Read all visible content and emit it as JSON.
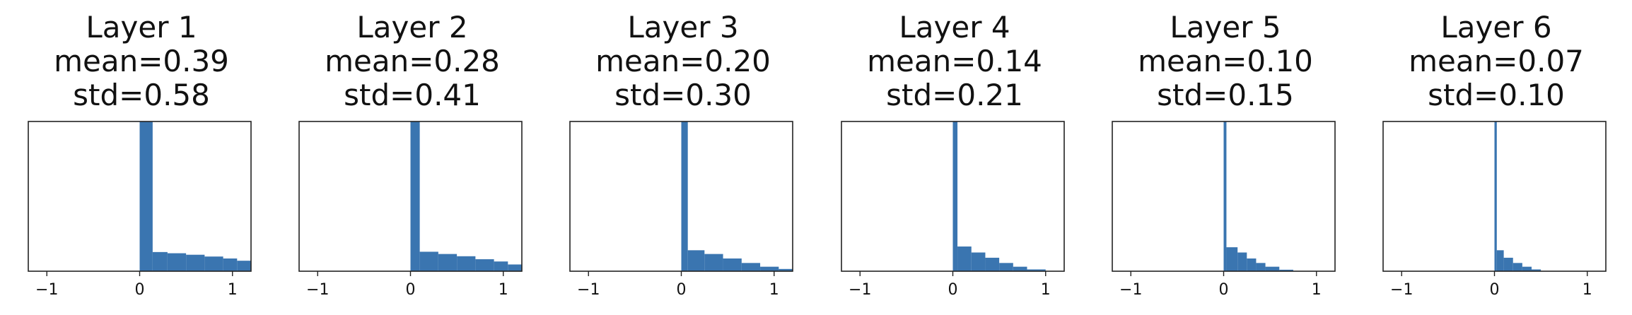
{
  "chart_data": [
    {
      "type": "histogram",
      "title": [
        "Layer 1",
        "mean=0.39",
        "std=0.58"
      ],
      "xlim": [
        -1.2,
        1.2
      ],
      "xticks": [
        "−1",
        "0",
        "1"
      ],
      "bins": [
        {
          "x0": 0.0,
          "x1": 0.14,
          "h": 1.0
        },
        {
          "x0": 0.14,
          "x1": 0.3,
          "h": 0.128
        },
        {
          "x0": 0.3,
          "x1": 0.5,
          "h": 0.12
        },
        {
          "x0": 0.5,
          "x1": 0.7,
          "h": 0.11
        },
        {
          "x0": 0.7,
          "x1": 0.9,
          "h": 0.098
        },
        {
          "x0": 0.9,
          "x1": 1.05,
          "h": 0.085
        },
        {
          "x0": 1.05,
          "x1": 1.2,
          "h": 0.07
        }
      ]
    },
    {
      "type": "histogram",
      "title": [
        "Layer 2",
        "mean=0.28",
        "std=0.41"
      ],
      "xlim": [
        -1.2,
        1.2
      ],
      "xticks": [
        "−1",
        "0",
        "1"
      ],
      "bins": [
        {
          "x0": 0.0,
          "x1": 0.1,
          "h": 1.0
        },
        {
          "x0": 0.1,
          "x1": 0.3,
          "h": 0.13
        },
        {
          "x0": 0.3,
          "x1": 0.5,
          "h": 0.115
        },
        {
          "x0": 0.5,
          "x1": 0.7,
          "h": 0.1
        },
        {
          "x0": 0.7,
          "x1": 0.9,
          "h": 0.08
        },
        {
          "x0": 0.9,
          "x1": 1.05,
          "h": 0.065
        },
        {
          "x0": 1.05,
          "x1": 1.2,
          "h": 0.045
        }
      ]
    },
    {
      "type": "histogram",
      "title": [
        "Layer 3",
        "mean=0.20",
        "std=0.30"
      ],
      "xlim": [
        -1.2,
        1.2
      ],
      "xticks": [
        "−1",
        "0",
        "1"
      ],
      "bins": [
        {
          "x0": 0.0,
          "x1": 0.07,
          "h": 1.0
        },
        {
          "x0": 0.07,
          "x1": 0.25,
          "h": 0.14
        },
        {
          "x0": 0.25,
          "x1": 0.45,
          "h": 0.115
        },
        {
          "x0": 0.45,
          "x1": 0.65,
          "h": 0.085
        },
        {
          "x0": 0.65,
          "x1": 0.85,
          "h": 0.055
        },
        {
          "x0": 0.85,
          "x1": 1.05,
          "h": 0.03
        },
        {
          "x0": 1.05,
          "x1": 1.2,
          "h": 0.015
        }
      ]
    },
    {
      "type": "histogram",
      "title": [
        "Layer 4",
        "mean=0.14",
        "std=0.21"
      ],
      "xlim": [
        -1.2,
        1.2
      ],
      "xticks": [
        "−1",
        "0",
        "1"
      ],
      "bins": [
        {
          "x0": 0.0,
          "x1": 0.05,
          "h": 1.0
        },
        {
          "x0": 0.05,
          "x1": 0.2,
          "h": 0.165
        },
        {
          "x0": 0.2,
          "x1": 0.35,
          "h": 0.125
        },
        {
          "x0": 0.35,
          "x1": 0.5,
          "h": 0.09
        },
        {
          "x0": 0.5,
          "x1": 0.65,
          "h": 0.055
        },
        {
          "x0": 0.65,
          "x1": 0.8,
          "h": 0.03
        },
        {
          "x0": 0.8,
          "x1": 1.0,
          "h": 0.012
        }
      ]
    },
    {
      "type": "histogram",
      "title": [
        "Layer 5",
        "mean=0.10",
        "std=0.15"
      ],
      "xlim": [
        -1.2,
        1.2
      ],
      "xticks": [
        "−1",
        "0",
        "1"
      ],
      "bins": [
        {
          "x0": 0.0,
          "x1": 0.03,
          "h": 1.0
        },
        {
          "x0": 0.03,
          "x1": 0.15,
          "h": 0.16
        },
        {
          "x0": 0.15,
          "x1": 0.25,
          "h": 0.125
        },
        {
          "x0": 0.25,
          "x1": 0.35,
          "h": 0.085
        },
        {
          "x0": 0.35,
          "x1": 0.45,
          "h": 0.055
        },
        {
          "x0": 0.45,
          "x1": 0.6,
          "h": 0.03
        },
        {
          "x0": 0.6,
          "x1": 0.75,
          "h": 0.01
        }
      ]
    },
    {
      "type": "histogram",
      "title": [
        "Layer 6",
        "mean=0.07",
        "std=0.10"
      ],
      "xlim": [
        -1.2,
        1.2
      ],
      "xticks": [
        "−1",
        "0",
        "1"
      ],
      "bins": [
        {
          "x0": 0.0,
          "x1": 0.025,
          "h": 1.0
        },
        {
          "x0": 0.025,
          "x1": 0.1,
          "h": 0.14
        },
        {
          "x0": 0.1,
          "x1": 0.2,
          "h": 0.09
        },
        {
          "x0": 0.2,
          "x1": 0.3,
          "h": 0.055
        },
        {
          "x0": 0.3,
          "x1": 0.4,
          "h": 0.03
        },
        {
          "x0": 0.4,
          "x1": 0.5,
          "h": 0.012
        }
      ]
    }
  ],
  "colors": {
    "bar": "#3a75b0",
    "axis": "#222222",
    "text": "#111111"
  },
  "grid": false,
  "legend": "none"
}
